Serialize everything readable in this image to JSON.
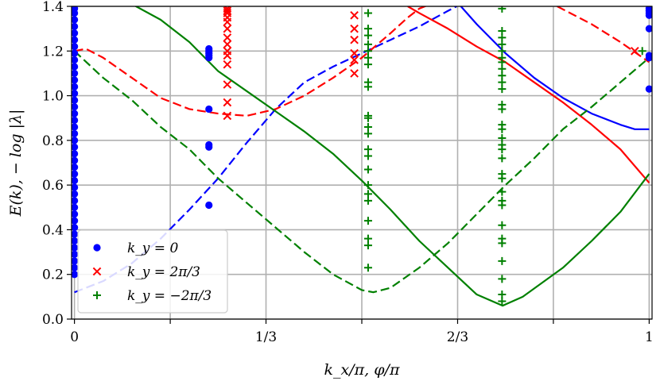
{
  "chart_data": {
    "type": "scatter",
    "xlabel": "k_x/π, φ/π",
    "ylabel": "E(k), − log |λ|",
    "xlim": [
      -0.005,
      1.005
    ],
    "ylim": [
      0.0,
      1.4
    ],
    "grid": true,
    "x_ticks": [
      {
        "value": 0,
        "label": "0"
      },
      {
        "value": 0.3333,
        "label": "1/3"
      },
      {
        "value": 0.6667,
        "label": "2/3"
      },
      {
        "value": 1,
        "label": "1"
      }
    ],
    "x_minor_ticks": [
      0.1667,
      0.5,
      0.8333
    ],
    "y_ticks": [
      {
        "value": 0.0,
        "label": "0.0"
      },
      {
        "value": 0.2,
        "label": "0.2"
      },
      {
        "value": 0.4,
        "label": "0.4"
      },
      {
        "value": 0.6,
        "label": "0.6"
      },
      {
        "value": 0.8,
        "label": "0.8"
      },
      {
        "value": 1.0,
        "label": "1.0"
      },
      {
        "value": 1.2,
        "label": "1.2"
      },
      {
        "value": 1.4,
        "label": "1.4"
      }
    ],
    "legend": {
      "position": "lower-left",
      "entries": [
        {
          "label": "k_y = 0",
          "marker": "circle",
          "color": "#0000ff"
        },
        {
          "label": "k_y = 2π/3",
          "marker": "x",
          "color": "#ff0000"
        },
        {
          "label": "k_y = −2π/3",
          "marker": "plus",
          "color": "#008000"
        }
      ]
    },
    "scatter_series": [
      {
        "name": "k_y = 0",
        "color": "#0000ff",
        "marker": "circle",
        "points": [
          [
            0,
            0.2
          ],
          [
            0,
            0.23
          ],
          [
            0,
            0.26
          ],
          [
            0,
            0.29
          ],
          [
            0,
            0.32
          ],
          [
            0,
            0.35
          ],
          [
            0,
            0.38
          ],
          [
            0,
            0.41
          ],
          [
            0,
            0.44
          ],
          [
            0,
            0.47
          ],
          [
            0,
            0.5
          ],
          [
            0,
            0.53
          ],
          [
            0,
            0.56
          ],
          [
            0,
            0.59
          ],
          [
            0,
            0.62
          ],
          [
            0,
            0.65
          ],
          [
            0,
            0.68
          ],
          [
            0,
            0.71
          ],
          [
            0,
            0.74
          ],
          [
            0,
            0.77
          ],
          [
            0,
            0.8
          ],
          [
            0,
            0.83
          ],
          [
            0,
            0.86
          ],
          [
            0,
            0.89
          ],
          [
            0,
            0.92
          ],
          [
            0,
            0.95
          ],
          [
            0,
            0.98
          ],
          [
            0,
            1.01
          ],
          [
            0,
            1.04
          ],
          [
            0,
            1.07
          ],
          [
            0,
            1.1
          ],
          [
            0,
            1.13
          ],
          [
            0,
            1.16
          ],
          [
            0,
            1.19
          ],
          [
            0,
            1.22
          ],
          [
            0,
            1.25
          ],
          [
            0,
            1.28
          ],
          [
            0,
            1.31
          ],
          [
            0,
            1.34
          ],
          [
            0,
            1.37
          ],
          [
            0,
            1.39
          ],
          [
            0.234,
            0.51
          ],
          [
            0.234,
            0.77
          ],
          [
            0.234,
            0.78
          ],
          [
            0.234,
            0.94
          ],
          [
            0.234,
            1.17
          ],
          [
            0.234,
            1.18
          ],
          [
            0.234,
            1.19
          ],
          [
            0.234,
            1.2
          ],
          [
            0.234,
            1.21
          ],
          [
            1,
            1.03
          ],
          [
            1,
            1.17
          ],
          [
            1,
            1.18
          ],
          [
            1,
            1.3
          ],
          [
            1,
            1.36
          ],
          [
            1,
            1.37
          ],
          [
            1,
            1.38
          ],
          [
            1,
            1.39
          ]
        ]
      },
      {
        "name": "k_y = 2π/3",
        "color": "#ff0000",
        "marker": "x",
        "points": [
          [
            0.266,
            0.91
          ],
          [
            0.266,
            0.97
          ],
          [
            0.266,
            1.05
          ],
          [
            0.266,
            1.14
          ],
          [
            0.266,
            1.18
          ],
          [
            0.266,
            1.2
          ],
          [
            0.266,
            1.23
          ],
          [
            0.266,
            1.26
          ],
          [
            0.266,
            1.3
          ],
          [
            0.266,
            1.33
          ],
          [
            0.266,
            1.35
          ],
          [
            0.266,
            1.37
          ],
          [
            0.266,
            1.38
          ],
          [
            0.266,
            1.39
          ],
          [
            0.487,
            1.1
          ],
          [
            0.487,
            1.16
          ],
          [
            0.487,
            1.19
          ],
          [
            0.487,
            1.25
          ],
          [
            0.487,
            1.3
          ],
          [
            0.487,
            1.36
          ],
          [
            0.975,
            1.2
          ]
        ]
      },
      {
        "name": "k_y = −2π/3",
        "color": "#008000",
        "marker": "plus",
        "points": [
          [
            0.511,
            0.23
          ],
          [
            0.511,
            0.33
          ],
          [
            0.511,
            0.36
          ],
          [
            0.511,
            0.44
          ],
          [
            0.511,
            0.53
          ],
          [
            0.511,
            0.56
          ],
          [
            0.511,
            0.6
          ],
          [
            0.511,
            0.67
          ],
          [
            0.511,
            0.73
          ],
          [
            0.511,
            0.76
          ],
          [
            0.511,
            0.83
          ],
          [
            0.511,
            0.86
          ],
          [
            0.511,
            0.9
          ],
          [
            0.511,
            0.91
          ],
          [
            0.511,
            1.04
          ],
          [
            0.511,
            1.06
          ],
          [
            0.511,
            1.14
          ],
          [
            0.511,
            1.17
          ],
          [
            0.511,
            1.2
          ],
          [
            0.511,
            1.23
          ],
          [
            0.511,
            1.27
          ],
          [
            0.511,
            1.3
          ],
          [
            0.511,
            1.37
          ],
          [
            0.744,
            0.08
          ],
          [
            0.744,
            0.11
          ],
          [
            0.744,
            0.18
          ],
          [
            0.744,
            0.26
          ],
          [
            0.744,
            0.34
          ],
          [
            0.744,
            0.36
          ],
          [
            0.744,
            0.42
          ],
          [
            0.744,
            0.51
          ],
          [
            0.744,
            0.53
          ],
          [
            0.744,
            0.57
          ],
          [
            0.744,
            0.63
          ],
          [
            0.744,
            0.65
          ],
          [
            0.744,
            0.72
          ],
          [
            0.744,
            0.76
          ],
          [
            0.744,
            0.78
          ],
          [
            0.744,
            0.81
          ],
          [
            0.744,
            0.85
          ],
          [
            0.744,
            0.87
          ],
          [
            0.744,
            0.94
          ],
          [
            0.744,
            0.96
          ],
          [
            0.744,
            1.03
          ],
          [
            0.744,
            1.06
          ],
          [
            0.744,
            1.09
          ],
          [
            0.744,
            1.12
          ],
          [
            0.744,
            1.15
          ],
          [
            0.744,
            1.17
          ],
          [
            0.744,
            1.2
          ],
          [
            0.744,
            1.23
          ],
          [
            0.744,
            1.26
          ],
          [
            0.744,
            1.29
          ],
          [
            0.744,
            1.39
          ],
          [
            0.988,
            1.2
          ]
        ]
      }
    ],
    "line_series": [
      {
        "color": "#0000ff",
        "style": "solid",
        "points": [
          [
            0.669,
            1.41
          ],
          [
            0.7,
            1.32
          ],
          [
            0.75,
            1.19
          ],
          [
            0.8,
            1.08
          ],
          [
            0.85,
            0.99
          ],
          [
            0.9,
            0.92
          ],
          [
            0.95,
            0.87
          ],
          [
            0.975,
            0.85
          ],
          [
            1.0,
            0.85
          ]
        ]
      },
      {
        "color": "#0000ff",
        "style": "dashed",
        "points": [
          [
            0.0,
            0.12
          ],
          [
            0.05,
            0.17
          ],
          [
            0.1,
            0.25
          ],
          [
            0.15,
            0.36
          ],
          [
            0.2,
            0.49
          ],
          [
            0.25,
            0.63
          ],
          [
            0.3,
            0.79
          ],
          [
            0.35,
            0.94
          ],
          [
            0.4,
            1.06
          ],
          [
            0.45,
            1.13
          ],
          [
            0.5,
            1.19
          ],
          [
            0.55,
            1.25
          ],
          [
            0.6,
            1.31
          ],
          [
            0.65,
            1.38
          ],
          [
            0.665,
            1.4
          ]
        ]
      },
      {
        "color": "#ff0000",
        "style": "solid",
        "points": [
          [
            0.58,
            1.4
          ],
          [
            0.6,
            1.37
          ],
          [
            0.65,
            1.3
          ],
          [
            0.7,
            1.22
          ],
          [
            0.75,
            1.15
          ],
          [
            0.8,
            1.06
          ],
          [
            0.85,
            0.97
          ],
          [
            0.9,
            0.87
          ],
          [
            0.95,
            0.76
          ],
          [
            1.0,
            0.61
          ]
        ]
      },
      {
        "color": "#ff0000",
        "style": "dashed",
        "points": [
          [
            0.0,
            1.2
          ],
          [
            0.02,
            1.21
          ],
          [
            0.05,
            1.17
          ],
          [
            0.1,
            1.08
          ],
          [
            0.15,
            0.99
          ],
          [
            0.2,
            0.94
          ],
          [
            0.25,
            0.92
          ],
          [
            0.3,
            0.91
          ],
          [
            0.35,
            0.94
          ],
          [
            0.4,
            1.0
          ],
          [
            0.45,
            1.08
          ],
          [
            0.5,
            1.17
          ],
          [
            0.55,
            1.28
          ],
          [
            0.58,
            1.35
          ],
          [
            0.6,
            1.39
          ],
          [
            0.62,
            1.41
          ]
        ]
      },
      {
        "color": "#ff0000",
        "style": "dashed",
        "points": [
          [
            0.84,
            1.4
          ],
          [
            0.9,
            1.32
          ],
          [
            0.95,
            1.24
          ],
          [
            1.0,
            1.15
          ]
        ]
      },
      {
        "color": "#008000",
        "style": "solid",
        "points": [
          [
            0.0,
            1.5
          ],
          [
            0.05,
            1.45
          ],
          [
            0.1,
            1.41
          ],
          [
            0.15,
            1.34
          ],
          [
            0.2,
            1.24
          ],
          [
            0.25,
            1.11
          ],
          [
            0.3,
            1.02
          ],
          [
            0.35,
            0.93
          ],
          [
            0.4,
            0.84
          ],
          [
            0.45,
            0.74
          ],
          [
            0.5,
            0.62
          ],
          [
            0.55,
            0.49
          ],
          [
            0.6,
            0.35
          ],
          [
            0.65,
            0.23
          ],
          [
            0.7,
            0.11
          ],
          [
            0.745,
            0.06
          ],
          [
            0.78,
            0.1
          ],
          [
            0.85,
            0.23
          ],
          [
            0.9,
            0.35
          ],
          [
            0.95,
            0.48
          ],
          [
            1.0,
            0.65
          ]
        ]
      },
      {
        "color": "#008000",
        "style": "dashed",
        "points": [
          [
            0.0,
            1.2
          ],
          [
            0.05,
            1.08
          ],
          [
            0.1,
            0.98
          ],
          [
            0.15,
            0.86
          ],
          [
            0.2,
            0.76
          ],
          [
            0.25,
            0.63
          ],
          [
            0.3,
            0.52
          ],
          [
            0.35,
            0.41
          ],
          [
            0.4,
            0.3
          ],
          [
            0.45,
            0.2
          ],
          [
            0.5,
            0.13
          ],
          [
            0.52,
            0.12
          ],
          [
            0.55,
            0.14
          ],
          [
            0.6,
            0.23
          ],
          [
            0.65,
            0.34
          ],
          [
            0.7,
            0.47
          ],
          [
            0.75,
            0.6
          ],
          [
            0.8,
            0.72
          ],
          [
            0.85,
            0.85
          ],
          [
            0.9,
            0.95
          ],
          [
            0.95,
            1.06
          ],
          [
            1.0,
            1.17
          ]
        ]
      }
    ]
  }
}
